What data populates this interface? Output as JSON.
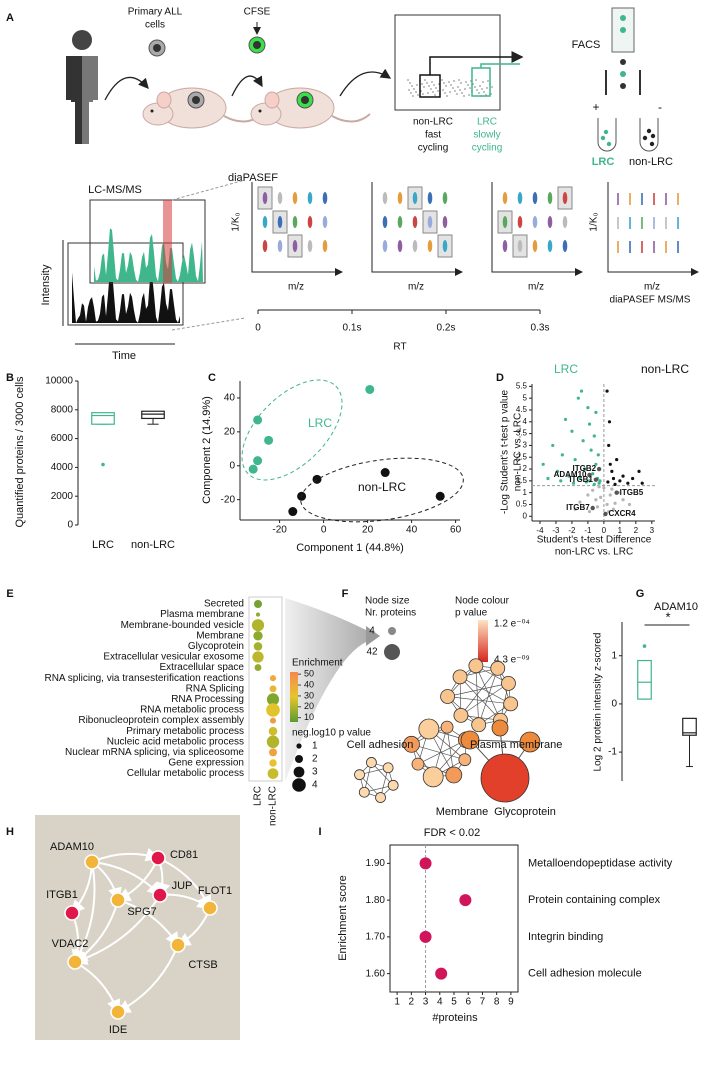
{
  "panel_labels": [
    "A",
    "B",
    "C",
    "D",
    "E",
    "F",
    "G",
    "H",
    "I"
  ],
  "schematic": {
    "primary_cells": [
      "Primary ALL",
      "cells"
    ],
    "cfse": "CFSE",
    "non_lrc_label": [
      "non-LRC",
      "fast",
      "cycling"
    ],
    "lrc_label": [
      "LRC",
      "slowly",
      "cycling"
    ],
    "facs": "FACS",
    "plus": "+",
    "minus": "-",
    "facs_lrc": "LRC",
    "facs_non_lrc": "non-LRC",
    "dia_pasef": "diaPASEF",
    "lc_ms": "LC-MS/MS",
    "intensity": "Intensity",
    "time": "Time",
    "mobility_axis": "1/K₀",
    "mz": "m/z",
    "msms": "diaPASEF MS/MS",
    "rt_axis": {
      "label": "RT",
      "xlim": [
        0,
        0.3
      ],
      "xticks": [
        0,
        {
          "value": 0.1,
          "label": "0.1s"
        },
        {
          "value": 0.2,
          "label": "0.2s"
        },
        {
          "value": 0.3,
          "label": "0.3s"
        }
      ]
    }
  },
  "chart_data": [
    {
      "type": "box",
      "ylabel": "Quantified proteins / 3000 cells",
      "categories": [
        "LRC",
        "non-LRC"
      ],
      "colors": [
        "#3fb68b",
        "#222222"
      ],
      "boxes": [
        {
          "whisker_low": 7000,
          "q1": 7000,
          "median": 7600,
          "q3": 7800,
          "whisker_high": 7800,
          "outliers": [
            4200
          ]
        },
        {
          "whisker_low": 7000,
          "q1": 7400,
          "median": 7700,
          "q3": 7900,
          "whisker_high": 7900,
          "outliers": []
        }
      ],
      "ylim": [
        0,
        10000
      ],
      "yticks": [
        0,
        2000,
        4000,
        6000,
        8000,
        10000
      ]
    },
    {
      "type": "scatter",
      "xlabel": "Component 1 (44.8%)",
      "ylabel": "Component 2 (14.9%)",
      "series": [
        {
          "name": "LRC",
          "color": "#3fb68b",
          "x": [
            -30,
            -25,
            -30,
            -32,
            21
          ],
          "y": [
            27,
            15,
            3,
            -2,
            45
          ]
        },
        {
          "name": "non-LRC",
          "color": "#111111",
          "x": [
            -14,
            -10,
            -3,
            28,
            53
          ],
          "y": [
            -27,
            -18,
            -8,
            -4,
            -18
          ]
        }
      ],
      "xlim": [
        -38,
        62
      ],
      "xticks": [
        -20,
        0,
        20,
        40,
        60
      ],
      "ylim": [
        -32,
        50
      ],
      "yticks": [
        -20,
        0,
        20,
        40
      ]
    },
    {
      "type": "scatter",
      "xlabel": [
        "Student's t-test Difference",
        "non-LRC vs. LRC"
      ],
      "ylabel": [
        "-Log Student's t-test p value",
        "non-LRC vs. LRC"
      ],
      "series": [
        {
          "name": "LRC",
          "color": "#3fb68b",
          "x": [
            -3.8,
            -3.2,
            -2.9,
            -2.6,
            -2.4,
            -2.2,
            -2.0,
            -1.8,
            -1.6,
            -1.5,
            -1.3,
            -1.2,
            -1.0,
            -0.9,
            -0.8,
            -0.7,
            -0.6,
            -0.5,
            -0.4,
            -0.3,
            -2.7,
            -1.9,
            -1.1,
            -0.6,
            -0.35,
            -3.5,
            -1.4,
            -0.9,
            -0.5,
            -0.25
          ],
          "y": [
            2.2,
            3.0,
            1.9,
            2.6,
            4.1,
            1.7,
            3.6,
            2.4,
            5.0,
            1.6,
            3.2,
            2.0,
            4.6,
            1.5,
            2.8,
            1.8,
            3.4,
            2.2,
            1.6,
            1.4,
            1.5,
            1.4,
            1.45,
            1.35,
            2.6,
            1.6,
            5.3,
            3.9,
            4.4,
            1.5
          ]
        },
        {
          "name": "non-LRC",
          "color": "#111111",
          "x": [
            0.2,
            0.3,
            0.4,
            0.5,
            0.6,
            0.8,
            1.0,
            1.2,
            1.5,
            1.8,
            2.2,
            2.4,
            0.35,
            0.7,
            0.25
          ],
          "y": [
            5.3,
            3.0,
            2.2,
            1.9,
            1.6,
            2.4,
            1.5,
            1.7,
            1.4,
            1.6,
            1.9,
            1.4,
            4.0,
            1.35,
            1.45
          ]
        },
        {
          "color": "#b5b5b5",
          "x": [
            -1.5,
            -1.0,
            -0.7,
            -0.4,
            -0.2,
            0,
            0.2,
            0.4,
            0.6,
            0.9,
            1.2,
            -0.9,
            -0.3,
            0.1,
            0.5,
            -1.8,
            1.6,
            -0.5,
            0.3,
            0.7
          ],
          "y": [
            0.6,
            0.9,
            1.1,
            0.4,
            0.8,
            1.2,
            0.5,
            0.9,
            0.3,
            1.0,
            0.7,
            0.2,
            1.25,
            0.1,
            1.15,
            0.3,
            0.5,
            0.7,
            0.2,
            0.55
          ]
        }
      ],
      "labeled_points": [
        {
          "label": "ITGB2",
          "x": -0.3,
          "y": 2.0
        },
        {
          "label": "ADAM10",
          "x": -0.9,
          "y": 1.75
        },
        {
          "label": "ITGB1",
          "x": -0.5,
          "y": 1.55
        },
        {
          "label": "ITGB5",
          "x": 0.8,
          "y": 1.0
        },
        {
          "label": "ITGB7",
          "x": -0.7,
          "y": 0.35
        },
        {
          "label": "CXCR4",
          "x": 0.1,
          "y": 0.1
        }
      ],
      "hline": 1.3,
      "vline": 0,
      "xlim": [
        -4.5,
        3.2
      ],
      "xticks": [
        -4,
        -3,
        -2,
        -1,
        0,
        1,
        2,
        3
      ],
      "ylim": [
        -0.2,
        5.6
      ],
      "yticks": [
        0,
        0.5,
        1,
        1.5,
        2,
        2.5,
        3,
        3.5,
        4,
        4.5,
        5,
        5.5
      ]
    },
    {
      "type": "dot_matrix",
      "terms": [
        "Secreted",
        "Plasma membrane",
        "Membrane-bounded vesicle",
        "Membrane",
        "Glycoprotein",
        "Extracellular vesicular exosome",
        "Extracellular space",
        "RNA splicing, via transesterification reactions",
        "RNA Splicing",
        "RNA Processing",
        "RNA metabolic process",
        "Ribonucleoprotein complex assembly",
        "Primary metabolic process",
        "Nucleic acid metabolic process",
        "Nuclear mRNA splicing, via spliceosome",
        "Gene expression",
        "Cellular metabolic process"
      ],
      "columns": [
        "LRC",
        "non-LRC"
      ],
      "column_index": [
        0,
        0,
        0,
        0,
        0,
        0,
        0,
        1,
        1,
        1,
        1,
        1,
        1,
        1,
        1,
        1,
        1
      ],
      "enrichment": [
        10,
        15,
        20,
        14,
        18,
        22,
        15,
        40,
        35,
        12,
        28,
        45,
        25,
        20,
        42,
        30,
        24
      ],
      "neg_log10_p": [
        2.0,
        0.6,
        3.5,
        2.5,
        2.2,
        3.2,
        1.6,
        1.3,
        1.6,
        3.5,
        4.0,
        1.3,
        2.2,
        3.6,
        2.0,
        1.8,
        3.0
      ],
      "color_title": "Enrichment",
      "color_lim": [
        6,
        52
      ],
      "color_ticks": [
        10,
        20,
        30,
        40,
        50
      ],
      "size_title": "neg.log10 p value",
      "size_ticks": [
        1,
        2,
        3,
        4
      ]
    },
    {
      "type": "box",
      "title": "ADAM10",
      "significance": "*",
      "ylabel": "Log 2 protein intensity z-scored",
      "colors": [
        "#3fb68b",
        "#222222"
      ],
      "boxes": [
        {
          "whisker_low": 0.1,
          "q1": 0.1,
          "median": 0.45,
          "q3": 0.9,
          "whisker_high": 0.9,
          "outliers": [
            1.2
          ]
        },
        {
          "whisker_low": -1.3,
          "q1": -0.65,
          "median": -0.6,
          "q3": -0.3,
          "whisker_high": -0.3,
          "outliers": []
        }
      ],
      "ylim": [
        -1.6,
        1.7
      ],
      "yticks": [
        -1,
        0,
        1
      ]
    },
    {
      "type": "scatter",
      "title": "FDR < 0.02",
      "xlabel": "#proteins",
      "ylabel": "Enrichment score",
      "labels": [
        "Metalloendopeptidase activity",
        "Protein containing complex",
        "Integrin binding",
        "Cell adhesion molecule"
      ],
      "series": [
        {
          "color": "#d0155a",
          "x": [
            3,
            5.8,
            3,
            4.1
          ],
          "y": [
            1.9,
            1.8,
            1.7,
            1.6
          ]
        }
      ],
      "vline": 3,
      "xlim": [
        0.5,
        9.5
      ],
      "xticks": [
        1,
        2,
        3,
        4,
        5,
        6,
        7,
        8,
        9
      ],
      "ylim": [
        1.55,
        1.95
      ],
      "yticks": [
        {
          "value": 1.6,
          "label": "1.60"
        },
        {
          "value": 1.7,
          "label": "1.70"
        },
        {
          "value": 1.8,
          "label": "1.80"
        },
        {
          "value": 1.9,
          "label": "1.90"
        }
      ]
    }
  ],
  "network_F": {
    "size_title": [
      "Node size",
      "Nr. proteins"
    ],
    "size_small": "4",
    "size_large": "42",
    "colour_title": [
      "Node colour",
      "p value"
    ],
    "p_high": "1.2 e⁻⁰⁴",
    "p_low": "4.3 e⁻⁰⁹",
    "clusters": [
      "Plasma membrane",
      "Cell adhesion",
      "Membrane",
      "Glycoprotein"
    ]
  },
  "network_H": {
    "nodes": [
      {
        "label": "ADAM10",
        "color": "#f2b53a"
      },
      {
        "label": "CD81",
        "color": "#e0174a"
      },
      {
        "label": "ITGB1",
        "color": "#e0174a"
      },
      {
        "label": "JUP",
        "color": "#e0174a"
      },
      {
        "label": "FLOT1",
        "color": "#f2b53a"
      },
      {
        "label": "SPG7",
        "color": "#f2b53a"
      },
      {
        "label": "VDAC2",
        "color": "#f2b53a"
      },
      {
        "label": "CTSB",
        "color": "#f2b53a"
      },
      {
        "label": "IDE",
        "color": "#f2b53a"
      }
    ]
  }
}
